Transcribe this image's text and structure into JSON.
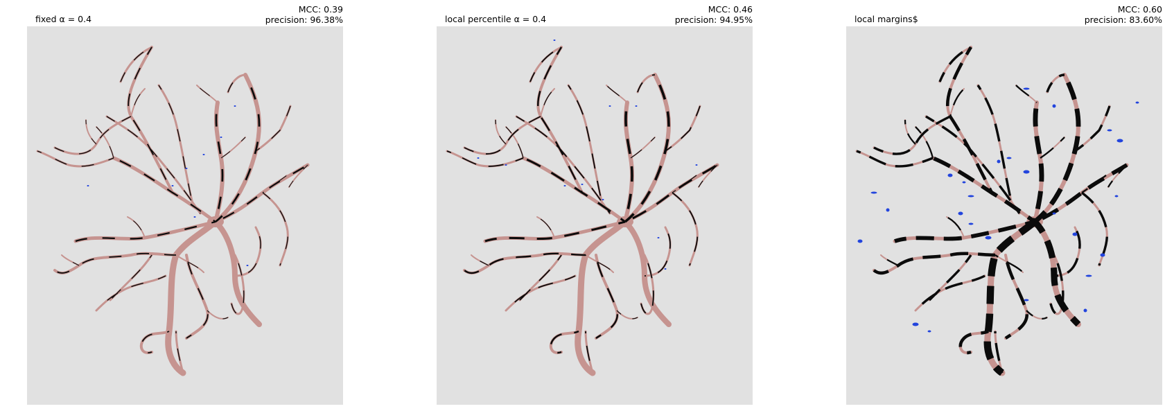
{
  "panels": [
    {
      "title": "fixed α = 0.4",
      "mcc": "MCC: 0.39",
      "precision": "precision: 96.38%",
      "style": "thin"
    },
    {
      "title": "local percentile α = 0.4",
      "mcc": "MCC: 0.46",
      "precision": "precision: 94.95%",
      "style": "medium"
    },
    {
      "title": "local margins$",
      "mcc": "MCC: 0.60",
      "precision": "precision: 83.60%",
      "style": "thick"
    }
  ],
  "colors": {
    "background": "#e1e1e1",
    "vessel": "#c69490",
    "overlap": "#0b0b0b",
    "false_positive": "#2244dd"
  }
}
